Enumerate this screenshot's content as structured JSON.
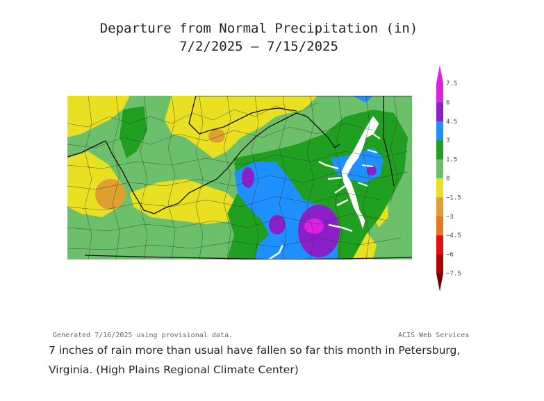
{
  "title": {
    "line1": "Departure from Normal Precipitation (in)",
    "line2": "7/2/2025 – 7/15/2025"
  },
  "legend": {
    "labels": [
      "7.5",
      "6",
      "4.5",
      "3",
      "1.5",
      "0",
      "−1.5",
      "−3",
      "−4.5",
      "−6",
      "−7.5"
    ],
    "colors": [
      "#e020e0",
      "#8a20c8",
      "#1e90ff",
      "#20a020",
      "#6cc06c",
      "#e8e020",
      "#e0a030",
      "#e87820",
      "#e01010",
      "#b00000",
      "#700000"
    ]
  },
  "footer": {
    "left": "Generated 7/16/2025  using provisional data.",
    "right": "ACIS Web Services"
  },
  "caption": "7 inches of rain more than usual have fallen so far this month in Petersburg, Virginia. (High Plains Regional Climate Center)"
}
